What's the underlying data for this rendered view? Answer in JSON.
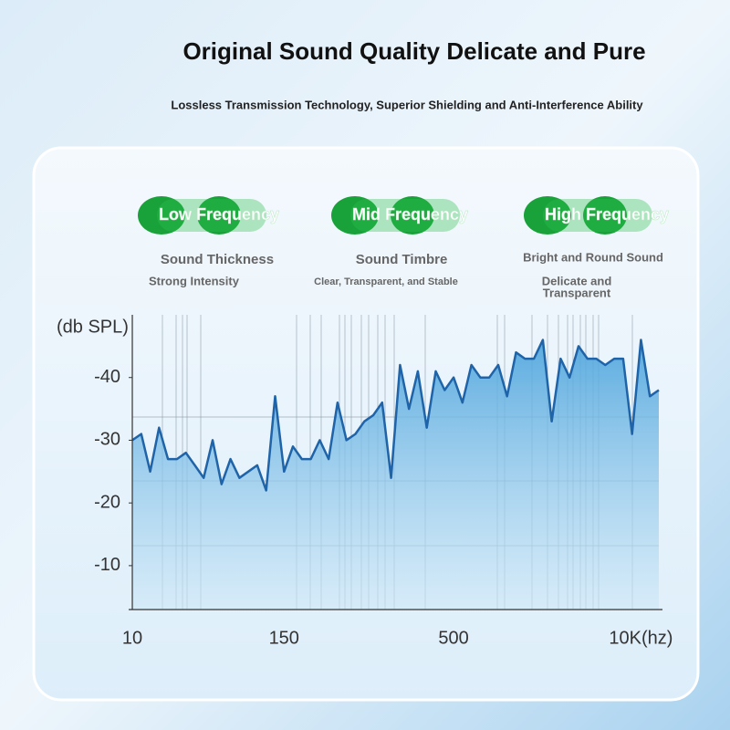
{
  "header": {
    "title": "Original Sound Quality Delicate and Pure",
    "subtitle": "Lossless Transmission Technology, Superior Shielding and Anti-Interference Ability"
  },
  "bands": [
    {
      "label": "Low Frequency",
      "heading": "Sound Thickness",
      "lines": [
        "Strong Intensity"
      ]
    },
    {
      "label": "Mid Frequency",
      "heading": "Sound Timbre",
      "lines": [
        "Clear, Transparent, and Stable"
      ]
    },
    {
      "label": "High Frequency",
      "heading": "Bright and Round Sound",
      "lines": [
        "Delicate and",
        "Transparent"
      ]
    }
  ],
  "chart_data": {
    "type": "area",
    "y_label": "(db SPL)",
    "color": "#1f63a8",
    "categories": [
      "10",
      null,
      null,
      null,
      null,
      null,
      null,
      null,
      null,
      null,
      null,
      null,
      null,
      null,
      null,
      null,
      null,
      "150",
      null,
      null,
      null,
      null,
      null,
      null,
      null,
      null,
      null,
      null,
      null,
      null,
      null,
      null,
      null,
      null,
      null,
      null,
      "500",
      null,
      null,
      null,
      null,
      null,
      null,
      null,
      null,
      null,
      null,
      null,
      null,
      null,
      null,
      null,
      null,
      null,
      null,
      null,
      null,
      "10K(hz)",
      null,
      null
    ],
    "values": [
      -30,
      -31,
      -25,
      -32,
      -27,
      -27,
      -28,
      -26,
      -24,
      -30,
      -23,
      -27,
      -24,
      -25,
      -26,
      -22,
      -37,
      -25,
      -29,
      -27,
      -27,
      -30,
      -27,
      -36,
      -30,
      -31,
      -33,
      -34,
      -36,
      -24,
      -42,
      -35,
      -41,
      -32,
      -41,
      -38,
      -40,
      -36,
      -42,
      -40,
      -40,
      -42,
      -37,
      -44,
      -43,
      -43,
      -46,
      -33,
      -43,
      -40,
      -45,
      -43,
      -43,
      -42,
      -43,
      -43,
      -31,
      -46,
      -37,
      -38
    ],
    "ylim": [
      -3,
      -50
    ],
    "yticks": [
      -40,
      -30,
      -20,
      -10
    ]
  }
}
